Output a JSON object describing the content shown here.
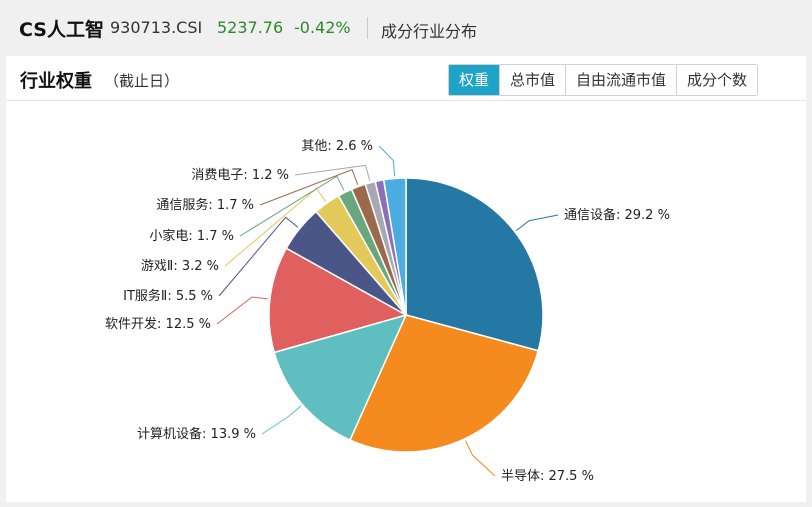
{
  "header": {
    "name": "CS人工智",
    "code": "930713.CSI",
    "price": "5237.76",
    "change": "-0.42%",
    "section": "成分行业分布"
  },
  "panel": {
    "title": "行业权重",
    "subtitle": "（截止日）",
    "tabs": [
      {
        "label": "权重",
        "active": true
      },
      {
        "label": "总市值",
        "active": false
      },
      {
        "label": "自由流通市值",
        "active": false
      },
      {
        "label": "成分个数",
        "active": false
      }
    ]
  },
  "chart_data": {
    "type": "pie",
    "slices": [
      {
        "label": "通信设备",
        "value": 29.2,
        "text": "通信设备: 29.2 %",
        "color": "#2578a4"
      },
      {
        "label": "半导体",
        "value": 27.5,
        "text": "半导体: 27.5 %",
        "color": "#f58a1f"
      },
      {
        "label": "计算机设备",
        "value": 13.9,
        "text": "计算机设备: 13.9 %",
        "color": "#5fbfc0"
      },
      {
        "label": "软件开发",
        "value": 12.5,
        "text": "软件开发: 12.5 %",
        "color": "#e05f5f"
      },
      {
        "label": "IT服务Ⅱ",
        "value": 5.5,
        "text": "IT服务Ⅱ: 5.5 %",
        "color": "#4a5588"
      },
      {
        "label": "游戏Ⅱ",
        "value": 3.2,
        "text": "游戏Ⅱ: 3.2 %",
        "color": "#e3c85a"
      },
      {
        "label": "小家电",
        "value": 1.7,
        "text": "小家电: 1.7 %",
        "color": "#68a87c"
      },
      {
        "label": "通信服务",
        "value": 1.7,
        "text": "通信服务: 1.7 %",
        "color": "#9a6a4a"
      },
      {
        "label": "消费电子",
        "value": 1.2,
        "text": "消费电子: 1.2 %",
        "color": "#a8a8b4"
      },
      {
        "label": "其他",
        "value": 2.6,
        "text": "其他: 2.6 %",
        "color": "#4aace0"
      }
    ],
    "extra_slice": {
      "value": 1.0,
      "color": "#8b6fb8"
    }
  }
}
